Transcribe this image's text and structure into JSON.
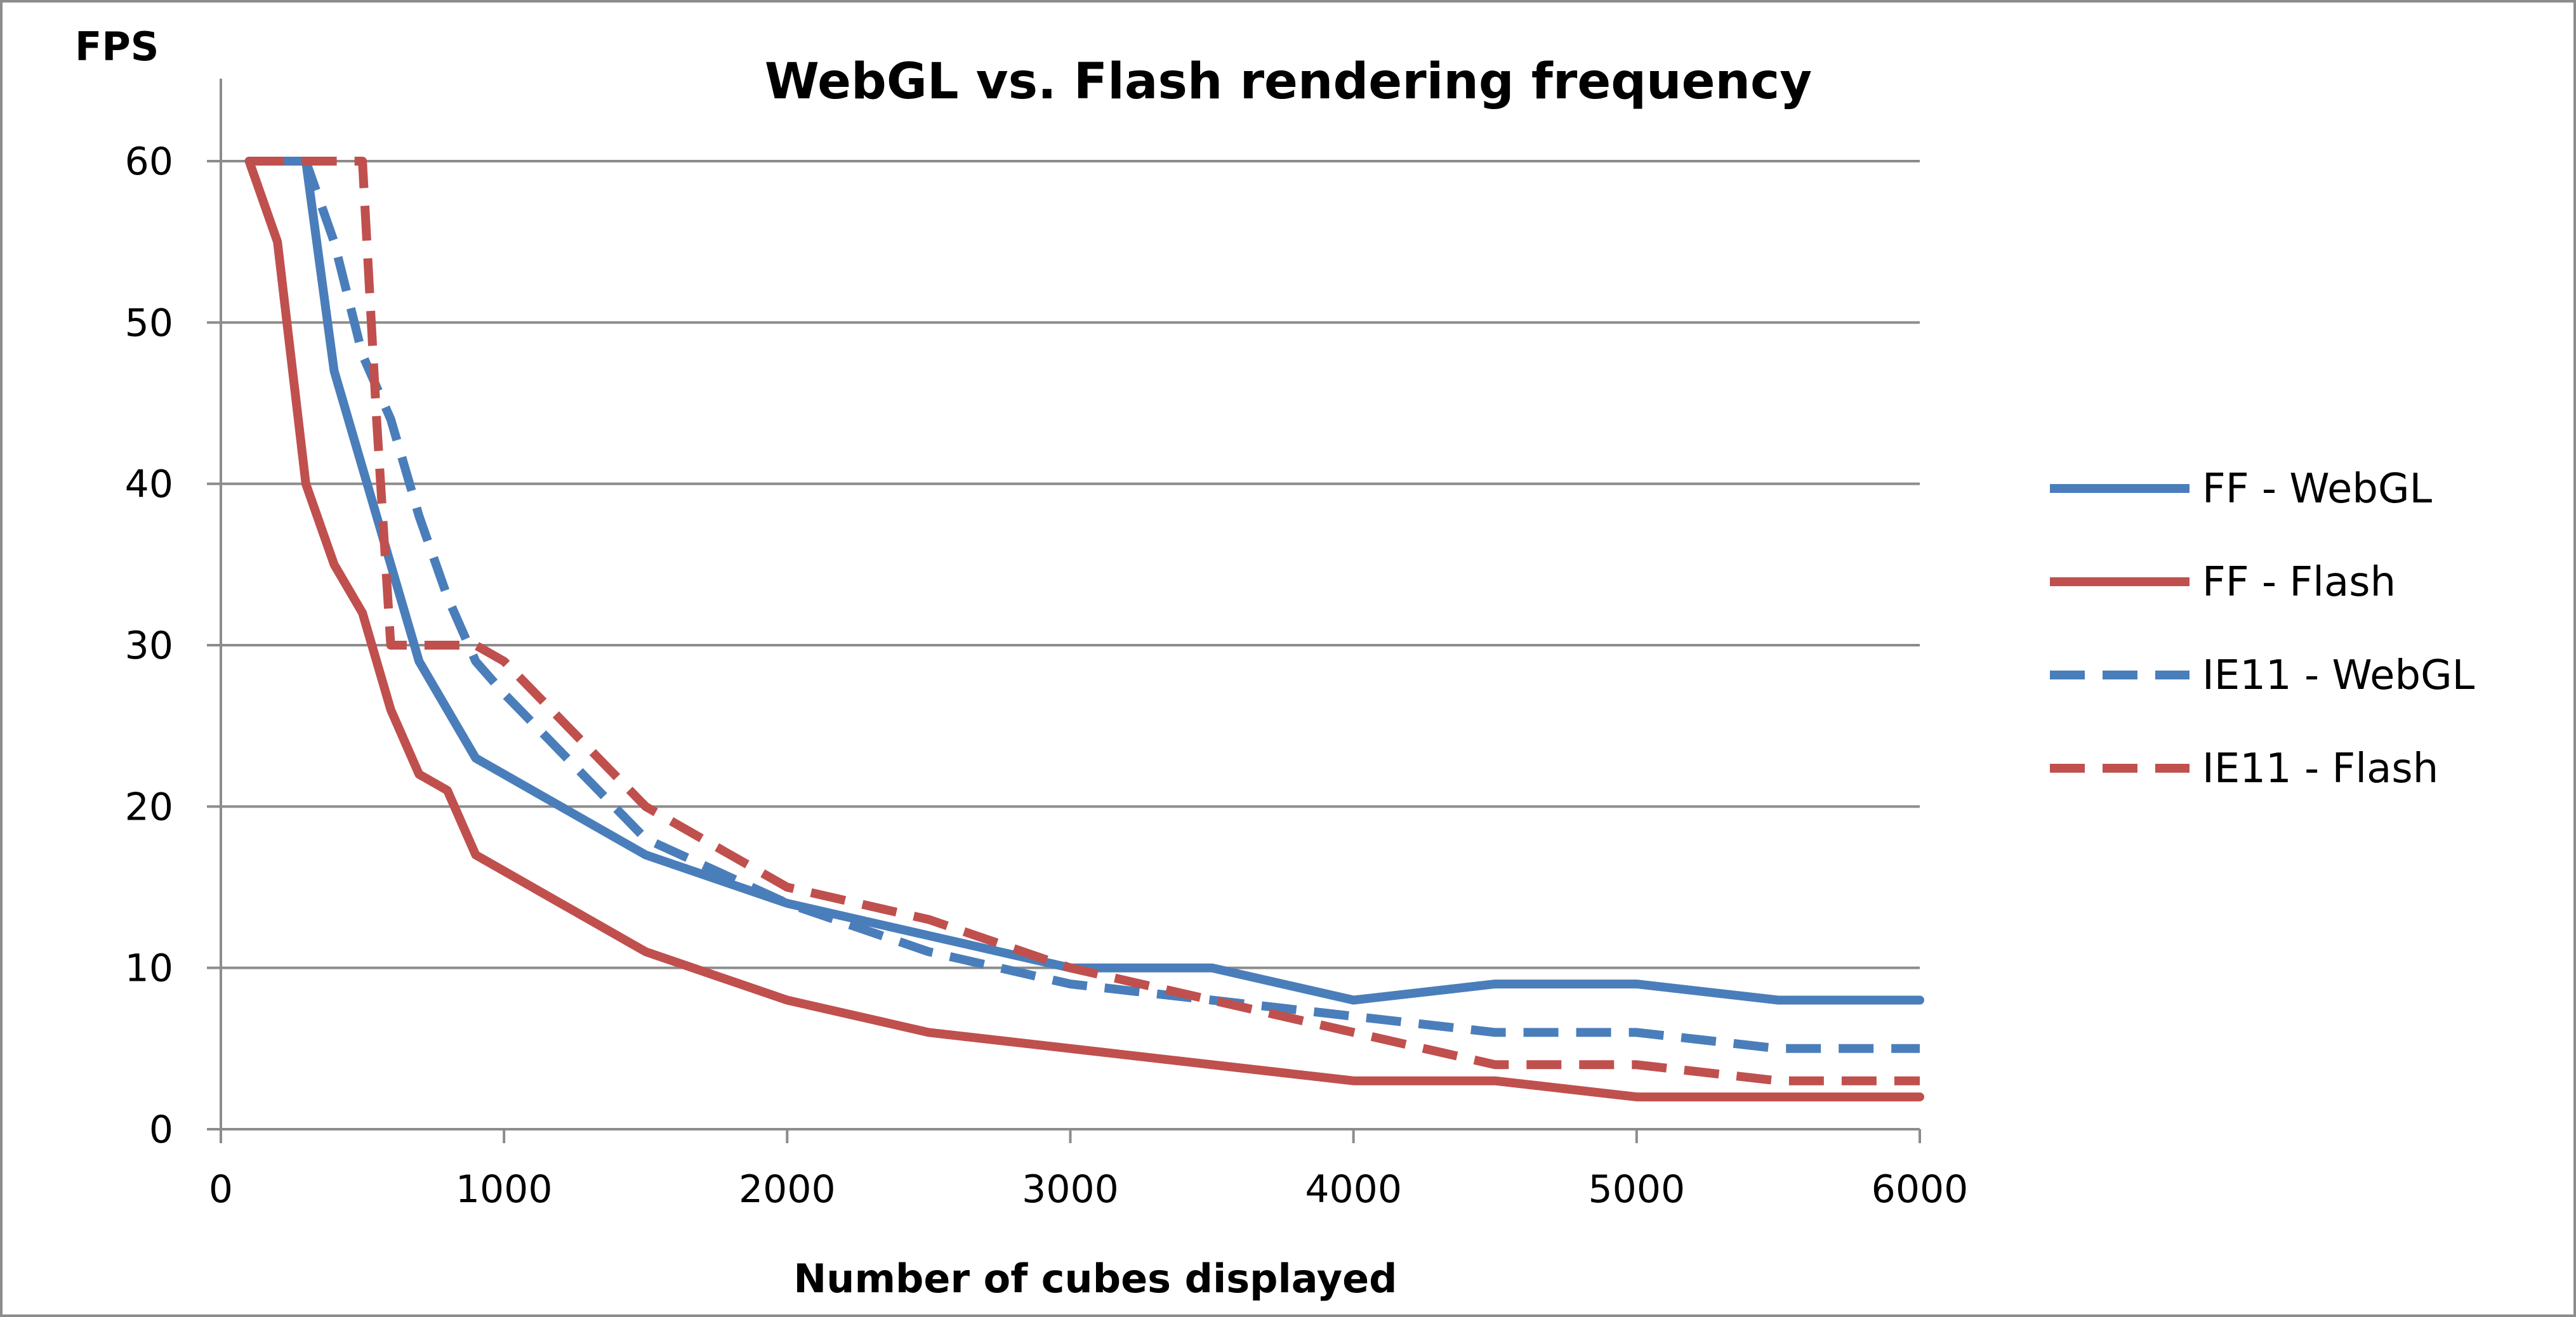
{
  "chart_data": {
    "type": "line",
    "title": "WebGL vs. Flash rendering frequency",
    "xlabel": "Number of cubes displayed",
    "ylabel": "FPS",
    "xlim": [
      0,
      6000
    ],
    "ylim": [
      0,
      60
    ],
    "x_ticks": [
      0,
      1000,
      2000,
      3000,
      4000,
      5000,
      6000
    ],
    "y_ticks": [
      0,
      10,
      20,
      30,
      40,
      50,
      60
    ],
    "grid": "horizontal",
    "legend_position": "right",
    "series": [
      {
        "name": "FF - WebGL",
        "color": "#4a7ebb",
        "dash": "solid",
        "x": [
          100,
          300,
          400,
          600,
          700,
          900,
          1500,
          2000,
          2500,
          3000,
          3500,
          4000,
          4500,
          5000,
          5500,
          6000
        ],
        "y": [
          60,
          60,
          47,
          35,
          29,
          23,
          17,
          14,
          12,
          10,
          10,
          8,
          9,
          9,
          8,
          8
        ]
      },
      {
        "name": "FF - Flash",
        "color": "#c0504d",
        "dash": "solid",
        "x": [
          100,
          200,
          300,
          400,
          500,
          600,
          700,
          800,
          900,
          1500,
          2000,
          2500,
          3000,
          3500,
          4000,
          4500,
          5000,
          5500,
          6000
        ],
        "y": [
          60,
          55,
          40,
          35,
          32,
          26,
          22,
          21,
          17,
          11,
          8,
          6,
          5,
          4,
          3,
          3,
          2,
          2,
          2
        ]
      },
      {
        "name": "IE11 - WebGL",
        "color": "#4a7ebb",
        "dash": "dashed",
        "x": [
          100,
          300,
          400,
          500,
          600,
          700,
          800,
          900,
          1000,
          1500,
          2000,
          2500,
          3000,
          3500,
          4000,
          4500,
          5000,
          5500,
          6000
        ],
        "y": [
          60,
          60,
          55,
          48,
          44,
          38,
          33,
          29,
          27,
          18,
          14,
          11,
          9,
          8,
          7,
          6,
          6,
          5,
          5
        ]
      },
      {
        "name": "IE11 - Flash",
        "color": "#c0504d",
        "dash": "dashed",
        "x": [
          100,
          500,
          550,
          600,
          700,
          800,
          900,
          1000,
          1500,
          2000,
          2500,
          3000,
          3500,
          4000,
          4500,
          5000,
          5500,
          6000
        ],
        "y": [
          60,
          60,
          44,
          30,
          30,
          30,
          30,
          29,
          20,
          15,
          13,
          10,
          8,
          6,
          4,
          4,
          3,
          3
        ]
      }
    ]
  }
}
